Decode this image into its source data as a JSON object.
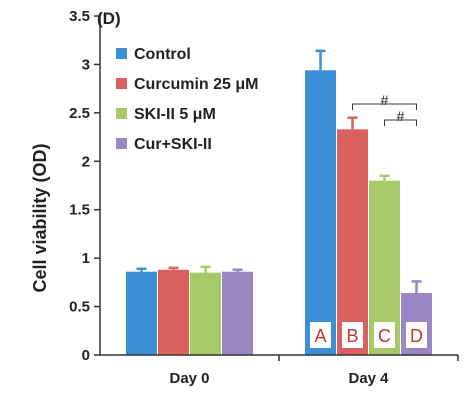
{
  "chart_data": {
    "type": "bar",
    "panel_label": "(D)",
    "ylabel": "Cell viability (OD)",
    "xlabel": "",
    "ylim": [
      0,
      3.5
    ],
    "yticks": [
      "0",
      "0.5",
      "1",
      "1.5",
      "2",
      "2.5",
      "3",
      "3.5"
    ],
    "categories": [
      "Day 0",
      "Day 4"
    ],
    "series": [
      {
        "name": "Control",
        "color": "#3b8fd6",
        "values": [
          0.86,
          2.94
        ],
        "errors": [
          0.03,
          0.2
        ]
      },
      {
        "name": "Curcumin 25 μM",
        "color": "#d9605e",
        "values": [
          0.88,
          2.33
        ],
        "errors": [
          0.02,
          0.12
        ]
      },
      {
        "name": "SKI-II 5 μM",
        "color": "#a8c96a",
        "values": [
          0.85,
          1.8
        ],
        "errors": [
          0.06,
          0.05
        ]
      },
      {
        "name": "Cur+SKI-II",
        "color": "#9b87c4",
        "values": [
          0.86,
          0.64
        ],
        "errors": [
          0.02,
          0.12
        ]
      }
    ],
    "bar_letters": [
      "A",
      "B",
      "C",
      "D"
    ],
    "significance": [
      "#",
      "#"
    ],
    "grid": false,
    "legend_position": "top-left"
  }
}
